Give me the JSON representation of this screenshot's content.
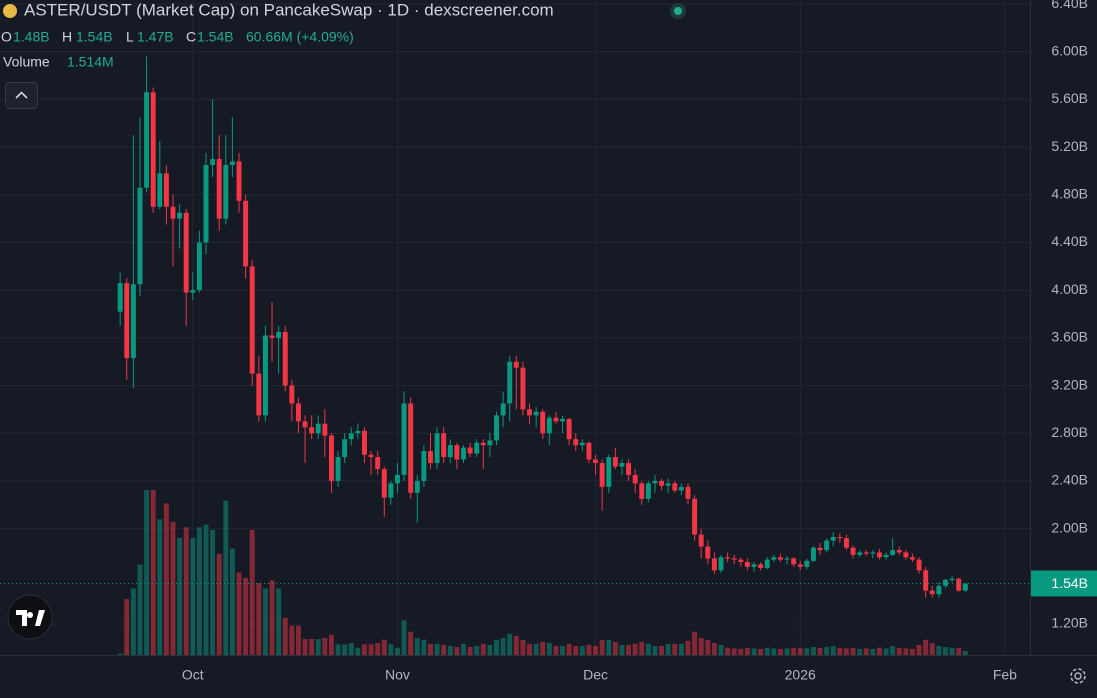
{
  "chart_data": {
    "type": "candlestick",
    "title": "ASTER/USDT (Market Cap) on PancakeSwap · 1D · dexscreener.com",
    "legend": {
      "o": "O",
      "open": "1.48B",
      "h": "H",
      "high": "1.54B",
      "l": "L",
      "low": "1.47B",
      "c": "C",
      "close": "1.54B",
      "change": "60.66M (+4.09%)",
      "volume_name": "Volume",
      "volume": "1.514M"
    },
    "up_color": "#089981",
    "down_color": "#f23645",
    "grid": true,
    "ylim": [
      0.94,
      6.434
    ],
    "yticks": [
      {
        "value": 6.4,
        "label": "6.40B"
      },
      {
        "value": 6.0,
        "label": "6.00B"
      },
      {
        "value": 5.6,
        "label": "5.60B"
      },
      {
        "value": 5.2,
        "label": "5.20B"
      },
      {
        "value": 4.8,
        "label": "4.80B"
      },
      {
        "value": 4.4,
        "label": "4.40B"
      },
      {
        "value": 4.0,
        "label": "4.00B"
      },
      {
        "value": 3.6,
        "label": "3.60B"
      },
      {
        "value": 3.2,
        "label": "3.20B"
      },
      {
        "value": 2.8,
        "label": "2.80B"
      },
      {
        "value": 2.4,
        "label": "2.40B"
      },
      {
        "value": 2.0,
        "label": "2.00B"
      },
      {
        "value": 1.2,
        "label": "1.20B"
      }
    ],
    "xlim": [
      -18.2,
      137.8
    ],
    "xticks": [
      {
        "value": 11,
        "label": "Oct"
      },
      {
        "value": 42,
        "label": "Nov"
      },
      {
        "value": 72,
        "label": "Dec"
      },
      {
        "value": 103,
        "label": "2026"
      },
      {
        "value": 134,
        "label": "Feb"
      }
    ],
    "last_price": {
      "value": 1.54,
      "label": "1.54B"
    },
    "open": [
      3.82,
      4.06,
      3.43,
      4.05,
      4.86,
      5.66,
      4.7,
      4.98,
      4.7,
      4.6,
      4.65,
      3.98,
      4.0,
      4.4,
      5.05,
      5.1,
      4.6,
      5.05,
      5.08,
      4.75,
      4.2,
      3.3,
      2.95,
      3.62,
      3.6,
      3.65,
      3.2,
      3.05,
      2.9,
      2.85,
      2.8,
      2.88,
      2.78,
      2.4,
      2.6,
      2.75,
      2.8,
      2.82,
      2.62,
      2.6,
      2.5,
      2.26,
      2.38,
      2.45,
      3.05,
      2.3,
      2.4,
      2.65,
      2.55,
      2.8,
      2.6,
      2.7,
      2.58,
      2.68,
      2.63,
      2.72,
      2.7,
      2.74,
      2.95,
      3.05,
      3.4,
      3.35,
      3.0,
      2.95,
      2.98,
      2.8,
      2.93,
      2.9,
      2.92,
      2.75,
      2.7,
      2.72,
      2.58,
      2.55,
      2.35,
      2.6,
      2.52,
      2.55,
      2.45,
      2.38,
      2.25,
      2.38,
      2.4,
      2.36,
      2.38,
      2.32,
      2.35,
      2.25,
      1.95,
      1.85,
      1.75,
      1.65,
      1.76,
      1.75,
      1.74,
      1.72,
      1.68,
      1.7,
      1.67,
      1.74,
      1.76,
      1.74,
      1.75,
      1.7,
      1.68,
      1.73,
      1.84,
      1.82,
      1.9,
      1.93,
      1.92,
      1.84,
      1.78,
      1.8,
      1.79,
      1.8,
      1.76,
      1.78,
      1.82,
      1.8,
      1.76,
      1.74,
      1.65,
      1.48,
      1.45,
      1.52,
      1.57,
      1.58,
      1.48
    ],
    "high": [
      4.15,
      4.1,
      5.3,
      5.45,
      5.96,
      5.7,
      5.25,
      5.05,
      4.8,
      4.72,
      4.68,
      4.15,
      4.5,
      5.15,
      5.6,
      5.3,
      5.3,
      5.45,
      5.15,
      4.8,
      4.25,
      3.45,
      3.7,
      3.9,
      3.7,
      3.7,
      3.25,
      3.1,
      2.95,
      2.95,
      2.95,
      3.0,
      2.8,
      2.65,
      2.8,
      2.85,
      2.88,
      2.85,
      2.65,
      2.65,
      2.52,
      2.4,
      2.55,
      3.15,
      3.1,
      2.45,
      2.7,
      2.8,
      2.85,
      2.85,
      2.75,
      2.72,
      2.7,
      2.72,
      2.75,
      2.75,
      2.8,
      2.98,
      3.15,
      3.45,
      3.45,
      3.4,
      3.05,
      3.02,
      3.0,
      2.95,
      2.98,
      2.95,
      2.93,
      2.8,
      2.75,
      2.73,
      2.62,
      2.58,
      2.62,
      2.68,
      2.58,
      2.58,
      2.5,
      2.4,
      2.4,
      2.45,
      2.42,
      2.42,
      2.4,
      2.38,
      2.38,
      2.28,
      2.0,
      1.9,
      1.8,
      1.78,
      1.8,
      1.78,
      1.76,
      1.75,
      1.72,
      1.72,
      1.76,
      1.78,
      1.79,
      1.77,
      1.76,
      1.73,
      1.75,
      1.85,
      1.88,
      1.92,
      1.97,
      1.96,
      1.95,
      1.86,
      1.82,
      1.82,
      1.82,
      1.83,
      1.8,
      1.92,
      1.85,
      1.82,
      1.79,
      1.76,
      1.68,
      1.52,
      1.55,
      1.58,
      1.6,
      1.59,
      1.54
    ],
    "low": [
      3.7,
      3.25,
      3.18,
      3.95,
      4.82,
      4.65,
      4.68,
      4.55,
      4.2,
      4.35,
      3.7,
      3.92,
      3.98,
      4.3,
      4.95,
      4.5,
      4.55,
      4.95,
      4.65,
      4.1,
      3.2,
      2.9,
      2.9,
      3.4,
      3.3,
      3.15,
      2.9,
      2.8,
      2.55,
      2.75,
      2.75,
      2.6,
      2.3,
      2.35,
      2.55,
      2.7,
      2.75,
      2.55,
      2.45,
      2.45,
      2.1,
      2.2,
      2.3,
      2.4,
      2.25,
      2.05,
      2.35,
      2.5,
      2.5,
      2.55,
      2.55,
      2.5,
      2.55,
      2.6,
      2.6,
      2.5,
      2.6,
      2.7,
      2.85,
      2.9,
      3.0,
      2.95,
      2.88,
      2.85,
      2.75,
      2.7,
      2.88,
      2.8,
      2.7,
      2.65,
      2.65,
      2.55,
      2.45,
      2.15,
      2.3,
      2.5,
      2.45,
      2.4,
      2.3,
      2.2,
      2.22,
      2.3,
      2.32,
      2.3,
      2.3,
      2.28,
      2.2,
      1.9,
      1.75,
      1.7,
      1.62,
      1.63,
      1.72,
      1.7,
      1.68,
      1.65,
      1.64,
      1.65,
      1.66,
      1.72,
      1.72,
      1.7,
      1.68,
      1.65,
      1.66,
      1.72,
      1.78,
      1.8,
      1.85,
      1.88,
      1.82,
      1.75,
      1.76,
      1.77,
      1.75,
      1.74,
      1.74,
      1.77,
      1.78,
      1.74,
      1.72,
      1.62,
      1.42,
      1.42,
      1.42,
      1.5,
      1.55,
      1.47,
      1.47
    ],
    "close": [
      4.06,
      3.43,
      4.05,
      4.86,
      5.66,
      4.7,
      4.98,
      4.7,
      4.6,
      4.65,
      3.98,
      4.0,
      4.4,
      5.05,
      5.1,
      4.6,
      5.05,
      5.08,
      4.75,
      4.2,
      3.3,
      2.95,
      3.62,
      3.6,
      3.65,
      3.2,
      3.05,
      2.9,
      2.85,
      2.8,
      2.88,
      2.78,
      2.4,
      2.6,
      2.75,
      2.8,
      2.82,
      2.62,
      2.6,
      2.5,
      2.26,
      2.38,
      2.45,
      3.05,
      2.3,
      2.4,
      2.65,
      2.55,
      2.8,
      2.6,
      2.7,
      2.58,
      2.68,
      2.63,
      2.72,
      2.7,
      2.74,
      2.95,
      3.05,
      3.4,
      3.35,
      3.0,
      2.95,
      2.98,
      2.8,
      2.93,
      2.9,
      2.92,
      2.75,
      2.7,
      2.72,
      2.58,
      2.55,
      2.35,
      2.6,
      2.52,
      2.55,
      2.45,
      2.38,
      2.25,
      2.38,
      2.4,
      2.36,
      2.38,
      2.32,
      2.35,
      2.25,
      1.95,
      1.85,
      1.75,
      1.65,
      1.76,
      1.75,
      1.74,
      1.72,
      1.68,
      1.7,
      1.67,
      1.74,
      1.76,
      1.74,
      1.75,
      1.7,
      1.68,
      1.73,
      1.84,
      1.82,
      1.9,
      1.93,
      1.92,
      1.84,
      1.78,
      1.8,
      1.79,
      1.8,
      1.76,
      1.78,
      1.82,
      1.8,
      1.76,
      1.74,
      1.65,
      1.48,
      1.45,
      1.52,
      1.57,
      1.58,
      1.48,
      1.54
    ],
    "volume": [
      0.5,
      21,
      25,
      34,
      62,
      62,
      51,
      57,
      50,
      44,
      48,
      44,
      48,
      49,
      47,
      38,
      58,
      40,
      31,
      29,
      47,
      27,
      25,
      28,
      25,
      14,
      11,
      11,
      6,
      6,
      6,
      6.4,
      7.6,
      4,
      4,
      4.5,
      2.7,
      4,
      4,
      4.5,
      5.7,
      4,
      2.7,
      13,
      8.7,
      6.4,
      5.7,
      4.2,
      4.2,
      3.8,
      3.4,
      3,
      4.2,
      3,
      3.4,
      4.2,
      3.8,
      5.7,
      6.4,
      8,
      7.2,
      5.7,
      4.2,
      4.2,
      4.9,
      4.5,
      3.4,
      3.4,
      4.2,
      3.4,
      3.4,
      3.8,
      3.4,
      5.7,
      5.7,
      4.9,
      3.8,
      3.8,
      4.2,
      4.9,
      4.2,
      3.4,
      3.4,
      4.2,
      4.2,
      4.2,
      5.3,
      8.7,
      6.4,
      5.7,
      4.5,
      3.8,
      2.7,
      2.5,
      2.3,
      2.7,
      2.5,
      2.3,
      2.7,
      2.5,
      2.3,
      2.5,
      2.7,
      2.7,
      2.5,
      3,
      2.7,
      3,
      3.4,
      2.7,
      2.5,
      2.7,
      2.3,
      2.5,
      2.3,
      2.7,
      2.5,
      3.4,
      2.7,
      2.5,
      2.3,
      3.8,
      5.7,
      4.5,
      3.4,
      3,
      2.7,
      2.7,
      1.514
    ]
  }
}
